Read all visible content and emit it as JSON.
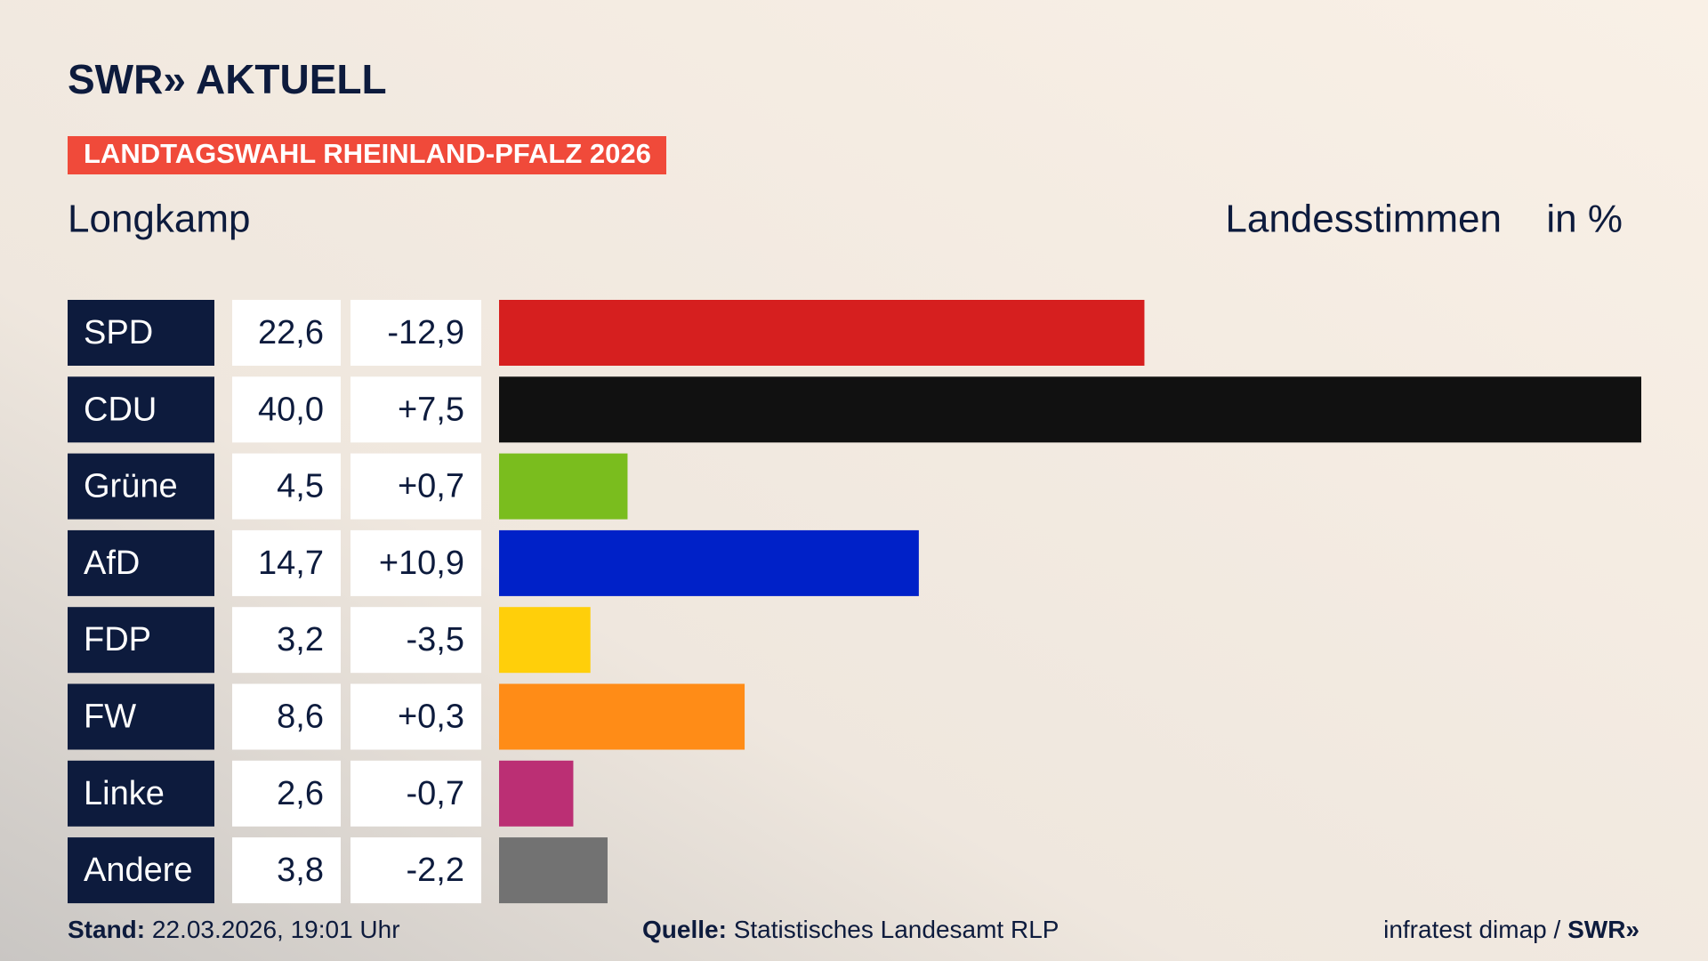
{
  "logo": "SWR» AKTUELL",
  "chart_data": {
    "type": "bar",
    "title": "LANDTAGSWAHL RHEINLAND-PFALZ 2026",
    "subtitle": "Longkamp",
    "value_label": "Landesstimmen",
    "unit_label": "in %",
    "categories": [
      "SPD",
      "CDU",
      "Grüne",
      "AfD",
      "FDP",
      "FW",
      "Linke",
      "Andere"
    ],
    "values": [
      22.6,
      40.0,
      4.5,
      14.7,
      3.2,
      8.6,
      2.6,
      3.8
    ],
    "value_labels": [
      "22,6",
      "40,0",
      "4,5",
      "14,7",
      "3,2",
      "8,6",
      "2,6",
      "3,8"
    ],
    "changes": [
      -12.9,
      7.5,
      0.7,
      10.9,
      -3.5,
      0.3,
      -0.7,
      -2.2
    ],
    "change_labels": [
      "-12,9",
      "+7,5",
      "+0,7",
      "+10,9",
      "-3,5",
      "+0,3",
      "-0,7",
      "-2,2"
    ],
    "colors": [
      "#d61f1f",
      "#111111",
      "#7abd1e",
      "#0021c8",
      "#ffcf0a",
      "#ff8c17",
      "#bb2f74",
      "#727272"
    ]
  },
  "footer": {
    "stand_label": "Stand:",
    "stand": "22.03.2026, 19:01 Uhr",
    "source_label": "Quelle:",
    "source": "Statistisches Landesamt RLP",
    "credit": "infratest dimap /",
    "credit_brand": "SWR»"
  }
}
